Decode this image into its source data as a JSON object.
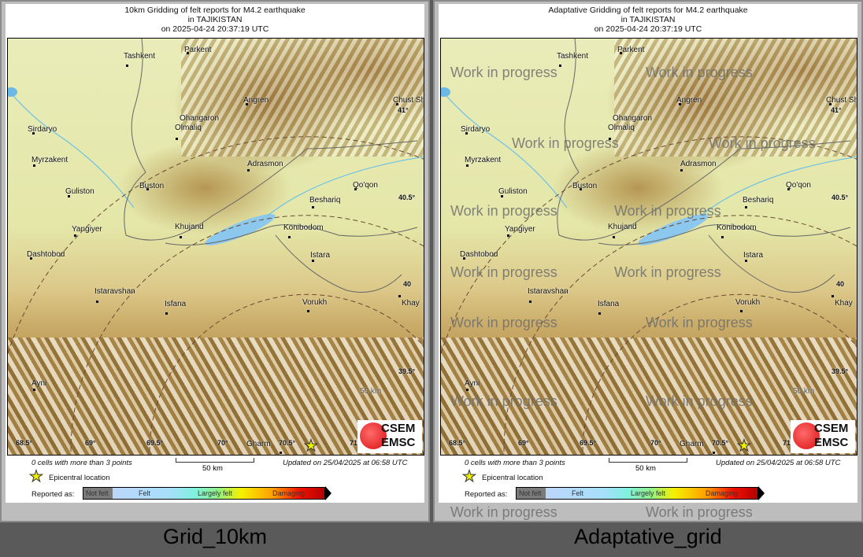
{
  "panels": [
    {
      "title_line1": "10km Gridding of felt reports for M4.2 earthquake",
      "title_line2": "in TAJIKISTAN",
      "title_line3": "on  2025-04-24 20:37:19 UTC",
      "caption": "Grid_10km",
      "watermark": ""
    },
    {
      "title_line1": "Adaptative Gridding of felt reports for M4.2 earthquake",
      "title_line2": "in TAJIKISTAN",
      "title_line3": "on  2025-04-24 20:37:19 UTC",
      "caption": "Adaptative_grid",
      "watermark": "Work in progress"
    }
  ],
  "map": {
    "places": [
      "Tashkent",
      "Parkent",
      "Angren",
      "Chust Sh",
      "Ohangaron",
      "Olmaliq",
      "Sirdaryo",
      "Myrzakent",
      "Adrasmon",
      "Qo'qon",
      "Buston",
      "Guliston",
      "Beshariq",
      "Yangiyer",
      "Khujand",
      "Konibodom",
      "Dashtobod",
      "Istara",
      "Khay",
      "Istaravshan",
      "Isfana",
      "Vorukh",
      "Ayni",
      "Gharm"
    ],
    "lat_ticks": [
      "41°",
      "40.5°",
      "40",
      "39.5°"
    ],
    "lon_ticks": [
      "68.5°",
      "69°",
      "69.5°",
      "70°",
      "70.5°",
      "71"
    ],
    "distance_label": "50 km",
    "logo": {
      "line1": "CSEM",
      "line2": "EMSC"
    }
  },
  "footer": {
    "cells_note": "0 cells with more than 3 points",
    "updated": "Updated on 25/04/2025 at 06:58 UTC",
    "scale_label": "50 km",
    "epicenter_label": "Epicentral location",
    "reported_as": "Reported as:",
    "legend": [
      "Not felt",
      "Felt",
      "Largely felt",
      "Damaging"
    ]
  },
  "colors": {
    "epicenter": "#eeee00",
    "scale_not_felt": "#7a7a7a",
    "scale_felt": "#bcd6fa",
    "scale_largely": "#8ff08a",
    "scale_damaging": "#f01000"
  }
}
